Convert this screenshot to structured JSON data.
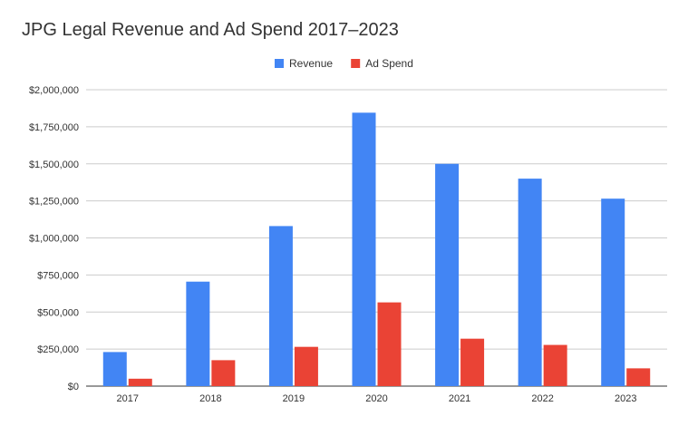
{
  "chart_data": {
    "type": "bar",
    "title": "JPG Legal Revenue and Ad Spend 2017–2023",
    "categories": [
      "2017",
      "2018",
      "2019",
      "2020",
      "2021",
      "2022",
      "2023"
    ],
    "series": [
      {
        "name": "Revenue",
        "color": "#4285f4",
        "values": [
          230000,
          705000,
          1080000,
          1845000,
          1500000,
          1400000,
          1265000
        ]
      },
      {
        "name": "Ad Spend",
        "color": "#ea4335",
        "values": [
          50000,
          175000,
          265000,
          565000,
          320000,
          278000,
          120000
        ]
      }
    ],
    "ylim": [
      0,
      2000000
    ],
    "yticks": [
      0,
      250000,
      500000,
      750000,
      1000000,
      1250000,
      1500000,
      1750000,
      2000000
    ],
    "ytick_labels": [
      "$0",
      "$250,000",
      "$500,000",
      "$750,000",
      "$1,000,000",
      "$1,250,000",
      "$1,500,000",
      "$1,750,000",
      "$2,000,000"
    ],
    "grid": true,
    "legend_position": "top-center",
    "xlabel": "",
    "ylabel": ""
  }
}
